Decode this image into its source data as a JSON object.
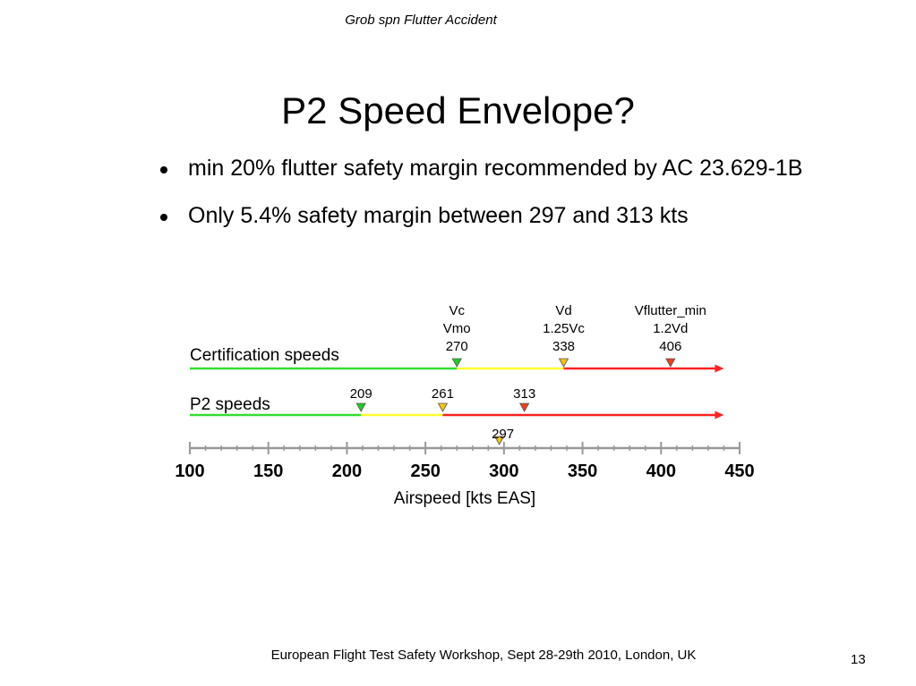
{
  "header": "Grob spn Flutter Accident",
  "title": "P2 Speed Envelope?",
  "bullets": [
    "min 20% flutter safety margin recommended by AC 23.629-1B",
    "Only 5.4% safety margin between 297 and 313 kts"
  ],
  "chart_data": {
    "type": "line",
    "title": "",
    "xlabel": "Airspeed [kts EAS]",
    "xlim": [
      100,
      450
    ],
    "tick_labels": [
      "100",
      "150",
      "200",
      "250",
      "300",
      "350",
      "400",
      "450"
    ],
    "series": [
      {
        "name": "Certification speeds",
        "segments": [
          {
            "from": 100,
            "to": 270,
            "color": "#33dd33"
          },
          {
            "from": 270,
            "to": 338,
            "color": "#ffff33"
          },
          {
            "from": 338,
            "to": 436,
            "color": "#ff2222"
          }
        ],
        "markers": [
          {
            "x": 270,
            "lines": [
              "Vc",
              "Vmo",
              "270"
            ],
            "color": "#22cc22"
          },
          {
            "x": 338,
            "lines": [
              "Vd",
              "1.25Vc",
              "338"
            ],
            "color": "#f5c518"
          },
          {
            "x": 406,
            "lines": [
              "Vflutter_min",
              "1.2Vd",
              "406"
            ],
            "color": "#e8431c"
          }
        ]
      },
      {
        "name": "P2 speeds",
        "segments": [
          {
            "from": 100,
            "to": 209,
            "color": "#33dd33"
          },
          {
            "from": 209,
            "to": 261,
            "color": "#ffff33"
          },
          {
            "from": 261,
            "to": 436,
            "color": "#ff2222"
          }
        ],
        "markers": [
          {
            "x": 209,
            "lines": [
              "209"
            ],
            "color": "#22cc22",
            "label_pos": "above"
          },
          {
            "x": 261,
            "lines": [
              "261"
            ],
            "color": "#f5c518",
            "label_pos": "above"
          },
          {
            "x": 313,
            "lines": [
              "313"
            ],
            "color": "#e8431c",
            "label_pos": "above"
          },
          {
            "x": 297,
            "lines": [
              "297"
            ],
            "color": "#f5c518",
            "label_pos": "below"
          }
        ]
      }
    ]
  },
  "footer": "European Flight Test Safety Workshop, Sept 28-29th 2010, London, UK",
  "page_number": "13"
}
